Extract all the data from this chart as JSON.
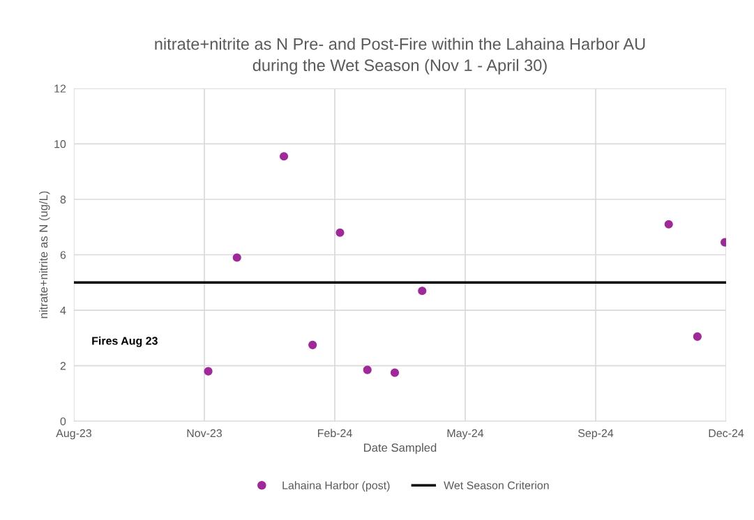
{
  "chart_data": {
    "type": "scatter",
    "title": "nitrate+nitrite as N Pre- and Post-Fire within the Lahaina Harbor AU\nduring the Wet Season (Nov 1 - April 30)",
    "xlabel": "Date Sampled",
    "ylabel": "nitrate+nitrite as N (ug/L)",
    "x": [
      "2023-11-12",
      "2023-12-04",
      "2024-01-09",
      "2024-01-31",
      "2024-02-21",
      "2024-03-13",
      "2024-04-03",
      "2024-04-24",
      "2024-10-30",
      "2024-11-21",
      "2024-12-12"
    ],
    "series": [
      {
        "name": "Lahaina Harbor (post)",
        "color": "#a0289b",
        "values": [
          1.8,
          5.9,
          9.55,
          2.75,
          6.8,
          1.85,
          1.75,
          4.7,
          7.1,
          3.05,
          6.45
        ]
      }
    ],
    "ref_lines": [
      {
        "axis": "y",
        "value": 5,
        "label": "Wet Season Criterion",
        "color": "#000000",
        "line_style": "solid"
      }
    ],
    "annotations": [
      "Fires Aug 23"
    ],
    "xlim": [
      "2023-08-01",
      "2024-12-13"
    ],
    "xticks": [
      {
        "value": "2023-08-01",
        "label": "Aug-23"
      },
      {
        "value": "2023-11-09",
        "label": "Nov-23"
      },
      {
        "value": "2024-02-17",
        "label": "Feb-24"
      },
      {
        "value": "2024-05-27",
        "label": "May-24"
      },
      {
        "value": "2024-09-04",
        "label": "Sep-24"
      },
      {
        "value": "2024-12-13",
        "label": "Dec-24"
      }
    ],
    "ylim": [
      0,
      12
    ],
    "yticks": [
      0,
      2,
      4,
      6,
      8,
      10,
      12
    ],
    "grid": true,
    "legend": "bottom",
    "marker": "circle"
  }
}
